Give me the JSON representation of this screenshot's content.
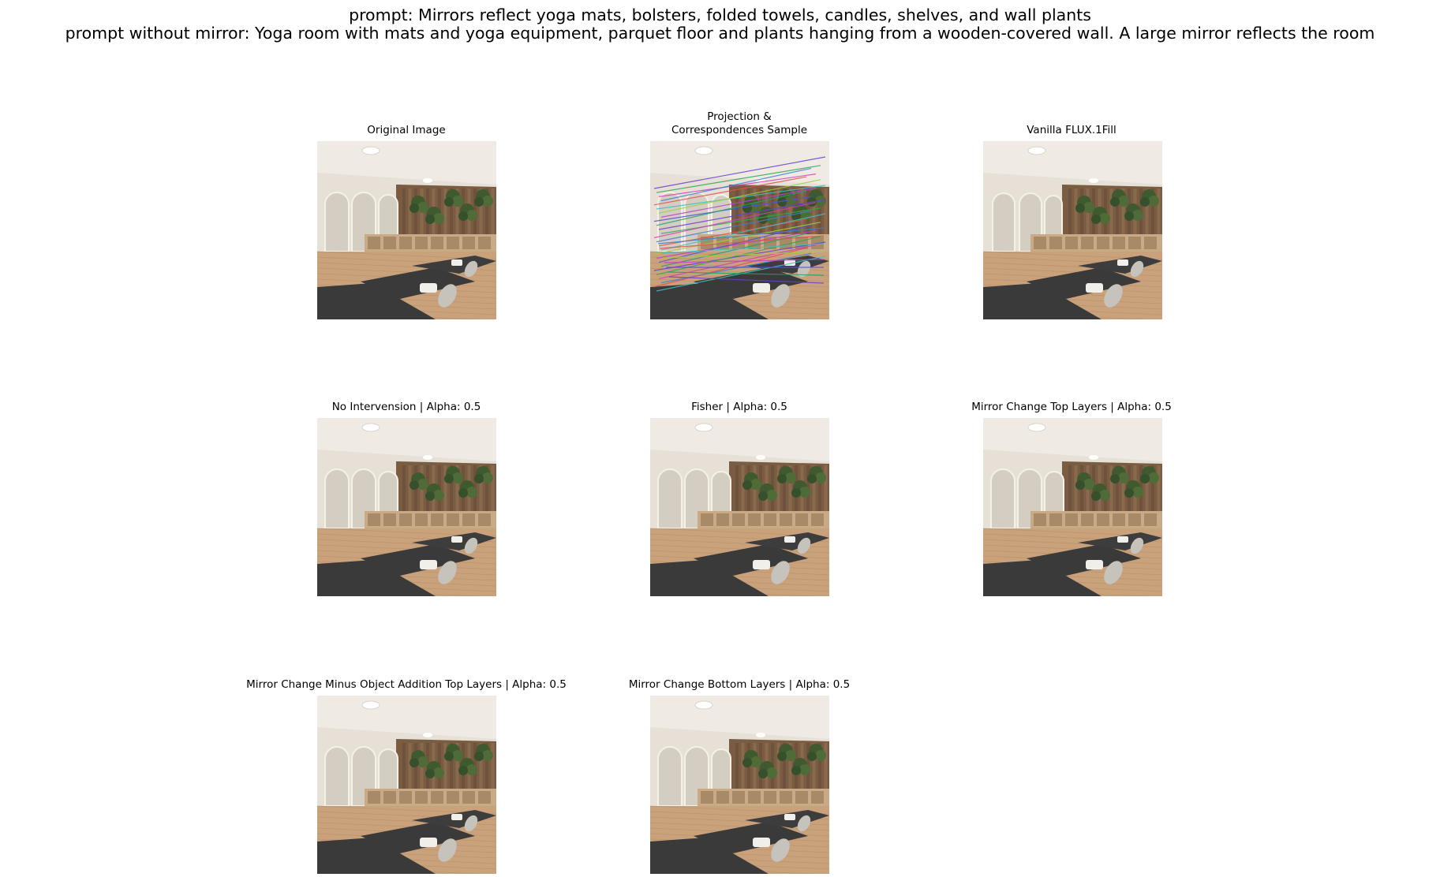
{
  "figure": {
    "suptitle_line1": "prompt: Mirrors reflect yoga mats, bolsters, folded towels, candles, shelves, and wall plants",
    "suptitle_line2": "prompt without mirror: Yoga room with mats and yoga equipment, parquet floor and plants hanging from a wooden-covered wall. A large mirror reflects the room"
  },
  "panels": [
    {
      "title": "Original Image"
    },
    {
      "title_line1": "Projection &",
      "title_line2": "Correspondences Sample"
    },
    {
      "title": "Vanilla FLUX.1Fill"
    },
    {
      "title": "No Intervension | Alpha: 0.5"
    },
    {
      "title": "Fisher | Alpha: 0.5"
    },
    {
      "title": "Mirror Change Top Layers | Alpha: 0.5"
    },
    {
      "title": "Mirror Change Minus Object Addition Top Layers | Alpha: 0.5"
    },
    {
      "title": "Mirror Change Bottom Layers | Alpha: 0.5"
    }
  ],
  "colors": {
    "wall": "#e6e0d6",
    "ceiling": "#efebe4",
    "floor": "#c9a27c",
    "wood_panel": "#7a5c43",
    "mat": "#3a3a3a",
    "plant": "#3f5a2e"
  }
}
